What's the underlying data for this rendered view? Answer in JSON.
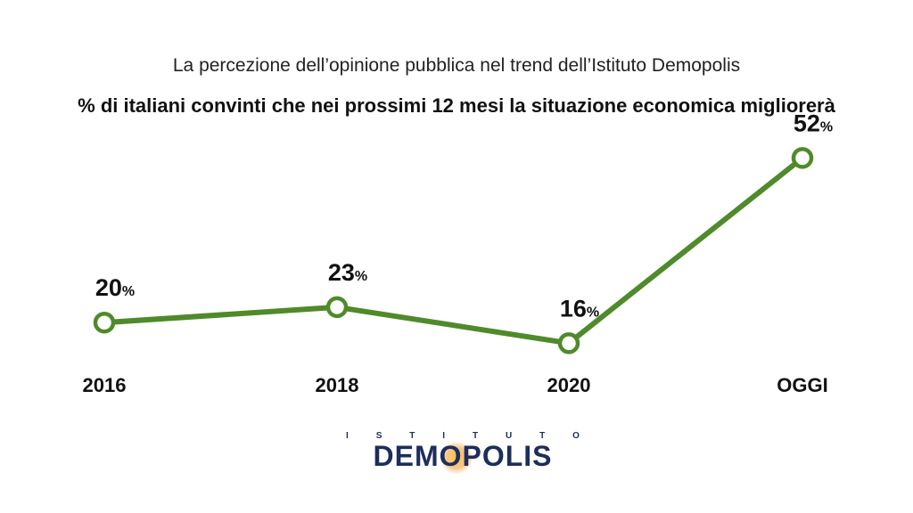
{
  "header": {
    "subtitle": "La percezione dell’opinione pubblica nel trend dell’Istituto Demopolis",
    "title": "% di italiani convinti che nei prossimi 12 mesi la situazione economica migliorerà"
  },
  "chart_data": {
    "type": "line",
    "categories": [
      "2016",
      "2018",
      "2020",
      "OGGI"
    ],
    "values": [
      20,
      23,
      16,
      52
    ],
    "value_unit": "%",
    "ylim": [
      10,
      55
    ],
    "grid": false,
    "legend": "none",
    "colors": {
      "line": "#4f8a2b",
      "marker_fill": "#ffffff",
      "text": "#111111"
    }
  },
  "logo": {
    "top_text": [
      "I",
      "S",
      "T",
      "I",
      "T",
      "U",
      "T",
      "O"
    ],
    "main_text": "DEMOPOLIS",
    "color": "#1d2d5c",
    "glow_color": "#f0a030"
  }
}
